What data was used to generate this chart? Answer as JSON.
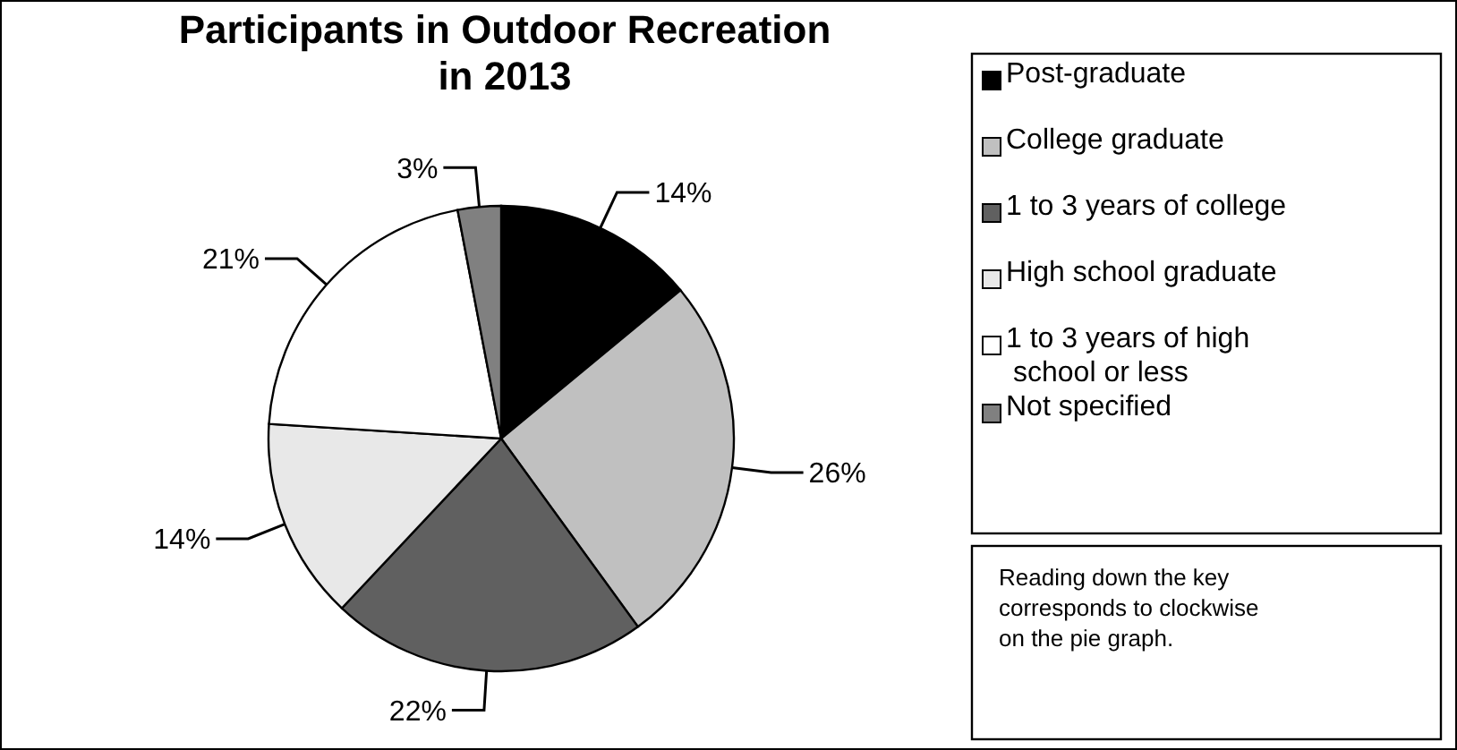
{
  "chart_data": {
    "type": "pie",
    "title": "Participants in Outdoor Recreation in 2013",
    "categories": [
      "Post-graduate",
      "College graduate",
      "1 to 3 years of college",
      "High school graduate",
      "1 to 3 years of high school or less",
      "Not specified"
    ],
    "values": [
      14,
      26,
      22,
      14,
      21,
      3
    ],
    "colors": [
      "#000000",
      "#c0c0c0",
      "#606060",
      "#e8e8e8",
      "#ffffff",
      "#808080"
    ],
    "value_labels": [
      "14%",
      "26%",
      "22%",
      "14%",
      "21%",
      "3%"
    ],
    "legend": "right",
    "annotations": [
      "Reading down the key corresponds to clockwise on the pie graph."
    ]
  }
}
